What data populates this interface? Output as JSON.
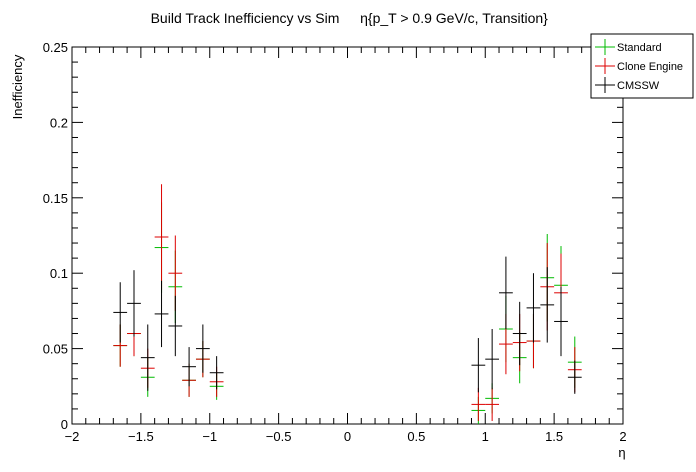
{
  "chart_data": {
    "type": "scatter",
    "title": "Build Track Inefficiency vs Sim",
    "title_selection": "η{p_T > 0.9 GeV/c, Transition}",
    "xlabel": "η",
    "ylabel": "Inefficiency",
    "xlim": [
      -2,
      2
    ],
    "ylim": [
      0,
      0.25
    ],
    "x_ticks": [
      "−2",
      "−1.5",
      "−1",
      "−0.5",
      "0",
      "0.5",
      "1",
      "1.5",
      "2"
    ],
    "y_ticks": [
      "0",
      "0.05",
      "0.1",
      "0.15",
      "0.2",
      "0.25"
    ],
    "grid": false,
    "legend_position": "top-right",
    "bin_half_width": 0.05,
    "series": [
      {
        "name": "Standard",
        "color": "#00bb00",
        "points": [
          {
            "x": -1.65,
            "y": 0.052,
            "err": 0.014
          },
          {
            "x": -1.55,
            "y": 0.06,
            "err": 0.015
          },
          {
            "x": -1.45,
            "y": 0.031,
            "err": 0.013
          },
          {
            "x": -1.35,
            "y": 0.117,
            "err": 0.03
          },
          {
            "x": -1.25,
            "y": 0.091,
            "err": 0.024
          },
          {
            "x": -1.15,
            "y": 0.029,
            "err": 0.011
          },
          {
            "x": -1.05,
            "y": 0.043,
            "err": 0.012
          },
          {
            "x": -0.95,
            "y": 0.025,
            "err": 0.009
          },
          {
            "x": 0.95,
            "y": 0.009,
            "err": 0.009
          },
          {
            "x": 1.05,
            "y": 0.017,
            "err": 0.01
          },
          {
            "x": 1.15,
            "y": 0.063,
            "err": 0.022
          },
          {
            "x": 1.25,
            "y": 0.044,
            "err": 0.017
          },
          {
            "x": 1.35,
            "y": 0.055,
            "err": 0.018
          },
          {
            "x": 1.45,
            "y": 0.097,
            "err": 0.029
          },
          {
            "x": 1.55,
            "y": 0.092,
            "err": 0.026
          },
          {
            "x": 1.65,
            "y": 0.041,
            "err": 0.017
          }
        ]
      },
      {
        "name": "Clone Engine",
        "color": "#dd0000",
        "points": [
          {
            "x": -1.65,
            "y": 0.052,
            "err": 0.014
          },
          {
            "x": -1.55,
            "y": 0.06,
            "err": 0.015
          },
          {
            "x": -1.45,
            "y": 0.037,
            "err": 0.013
          },
          {
            "x": -1.35,
            "y": 0.124,
            "err": 0.035
          },
          {
            "x": -1.25,
            "y": 0.1,
            "err": 0.025
          },
          {
            "x": -1.15,
            "y": 0.029,
            "err": 0.011
          },
          {
            "x": -1.05,
            "y": 0.043,
            "err": 0.012
          },
          {
            "x": -0.95,
            "y": 0.028,
            "err": 0.01
          },
          {
            "x": 0.95,
            "y": 0.013,
            "err": 0.011
          },
          {
            "x": 1.05,
            "y": 0.013,
            "err": 0.011
          },
          {
            "x": 1.15,
            "y": 0.053,
            "err": 0.02
          },
          {
            "x": 1.25,
            "y": 0.054,
            "err": 0.019
          },
          {
            "x": 1.35,
            "y": 0.055,
            "err": 0.018
          },
          {
            "x": 1.45,
            "y": 0.091,
            "err": 0.029
          },
          {
            "x": 1.55,
            "y": 0.087,
            "err": 0.026
          },
          {
            "x": 1.65,
            "y": 0.036,
            "err": 0.015
          }
        ]
      },
      {
        "name": "CMSSW",
        "color": "#000000",
        "points": [
          {
            "x": -1.65,
            "y": 0.074,
            "err": 0.02
          },
          {
            "x": -1.55,
            "y": 0.08,
            "err": 0.022
          },
          {
            "x": -1.45,
            "y": 0.044,
            "err": 0.022
          },
          {
            "x": -1.35,
            "y": 0.073,
            "err": 0.022
          },
          {
            "x": -1.25,
            "y": 0.065,
            "err": 0.02
          },
          {
            "x": -1.15,
            "y": 0.038,
            "err": 0.013
          },
          {
            "x": -1.05,
            "y": 0.05,
            "err": 0.016
          },
          {
            "x": -0.95,
            "y": 0.034,
            "err": 0.011
          },
          {
            "x": 0.95,
            "y": 0.039,
            "err": 0.018
          },
          {
            "x": 1.05,
            "y": 0.043,
            "err": 0.02
          },
          {
            "x": 1.15,
            "y": 0.087,
            "err": 0.024
          },
          {
            "x": 1.25,
            "y": 0.06,
            "err": 0.021
          },
          {
            "x": 1.35,
            "y": 0.077,
            "err": 0.023
          },
          {
            "x": 1.45,
            "y": 0.079,
            "err": 0.025
          },
          {
            "x": 1.55,
            "y": 0.068,
            "err": 0.023
          },
          {
            "x": 1.65,
            "y": 0.031,
            "err": 0.011
          }
        ]
      }
    ]
  }
}
